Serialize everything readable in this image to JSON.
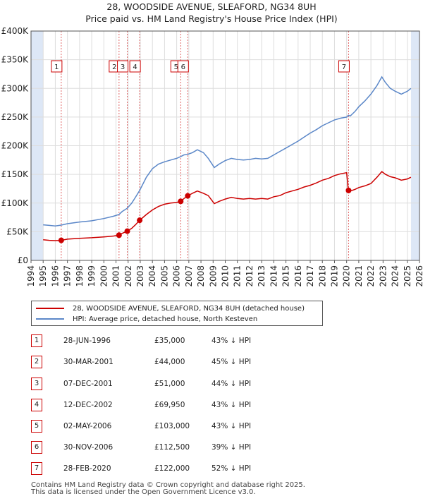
{
  "title_line1": "28, WOODSIDE AVENUE, SLEAFORD, NG34 8UH",
  "title_line2": "Price paid vs. HM Land Registry's House Price Index (HPI)",
  "colors": {
    "red": "#cc0000",
    "blue": "#5b87c8",
    "shade": "#dde7f6"
  },
  "chart_data": {
    "type": "line",
    "xlim": [
      1994,
      2026
    ],
    "ylim": [
      0,
      400000
    ],
    "y_ticks": [
      0,
      50000,
      100000,
      150000,
      200000,
      250000,
      300000,
      350000,
      400000
    ],
    "y_tick_labels": [
      "£0",
      "£50K",
      "£100K",
      "£150K",
      "£200K",
      "£250K",
      "£300K",
      "£350K",
      "£400K"
    ],
    "x_ticks": [
      1994,
      1995,
      1996,
      1997,
      1998,
      1999,
      2000,
      2001,
      2002,
      2003,
      2004,
      2005,
      2006,
      2007,
      2008,
      2009,
      2010,
      2011,
      2012,
      2013,
      2014,
      2015,
      2016,
      2017,
      2018,
      2019,
      2020,
      2021,
      2022,
      2023,
      2024,
      2025,
      2026
    ],
    "data_range": [
      1995.0,
      2025.3
    ],
    "series": [
      {
        "name": "28, WOODSIDE AVENUE, SLEAFORD, NG34 8UH (detached house)",
        "color": "#cc0000",
        "points": [
          [
            1995.0,
            36000
          ],
          [
            1995.5,
            35000
          ],
          [
            1996.0,
            34500
          ],
          [
            1996.49,
            35000
          ],
          [
            1997.0,
            37000
          ],
          [
            1998.0,
            38500
          ],
          [
            1999.0,
            39500
          ],
          [
            2000.0,
            41000
          ],
          [
            2000.8,
            42500
          ],
          [
            2001.25,
            44000
          ],
          [
            2001.5,
            47000
          ],
          [
            2001.93,
            51000
          ],
          [
            2002.3,
            56000
          ],
          [
            2002.6,
            62000
          ],
          [
            2002.95,
            69950
          ],
          [
            2003.5,
            80000
          ],
          [
            2004.0,
            88000
          ],
          [
            2004.5,
            94000
          ],
          [
            2005.0,
            98000
          ],
          [
            2005.5,
            100000
          ],
          [
            2006.0,
            101000
          ],
          [
            2006.33,
            103000
          ],
          [
            2006.6,
            108000
          ],
          [
            2006.91,
            112500
          ],
          [
            2007.3,
            117000
          ],
          [
            2007.7,
            121000
          ],
          [
            2008.2,
            117000
          ],
          [
            2008.6,
            113000
          ],
          [
            2009.1,
            99000
          ],
          [
            2009.5,
            103000
          ],
          [
            2010.0,
            107000
          ],
          [
            2010.5,
            110000
          ],
          [
            2011.0,
            108000
          ],
          [
            2011.5,
            107000
          ],
          [
            2012.0,
            108000
          ],
          [
            2012.5,
            107000
          ],
          [
            2013.0,
            108000
          ],
          [
            2013.5,
            107000
          ],
          [
            2014.0,
            111000
          ],
          [
            2014.5,
            113000
          ],
          [
            2015.0,
            118000
          ],
          [
            2015.5,
            121000
          ],
          [
            2016.0,
            124000
          ],
          [
            2016.5,
            128000
          ],
          [
            2017.0,
            131000
          ],
          [
            2017.5,
            135000
          ],
          [
            2018.0,
            140000
          ],
          [
            2018.5,
            143000
          ],
          [
            2019.0,
            148000
          ],
          [
            2019.5,
            151000
          ],
          [
            2020.0,
            153000
          ],
          [
            2020.14,
            122000
          ],
          [
            2020.3,
            121000
          ],
          [
            2020.7,
            124000
          ],
          [
            2021.0,
            127000
          ],
          [
            2021.5,
            130000
          ],
          [
            2022.0,
            134000
          ],
          [
            2022.5,
            145000
          ],
          [
            2022.9,
            155000
          ],
          [
            2023.2,
            150000
          ],
          [
            2023.6,
            146000
          ],
          [
            2024.0,
            144000
          ],
          [
            2024.5,
            140000
          ],
          [
            2025.0,
            142000
          ],
          [
            2025.3,
            145000
          ]
        ]
      },
      {
        "name": "HPI: Average price, detached house, North Kesteven",
        "color": "#5b87c8",
        "points": [
          [
            1995.0,
            62000
          ],
          [
            1995.5,
            61000
          ],
          [
            1996.0,
            60000
          ],
          [
            1996.49,
            61500
          ],
          [
            1997.0,
            64000
          ],
          [
            1998.0,
            67000
          ],
          [
            1999.0,
            69000
          ],
          [
            2000.0,
            73000
          ],
          [
            2000.8,
            77000
          ],
          [
            2001.25,
            80000
          ],
          [
            2001.5,
            85000
          ],
          [
            2001.93,
            91000
          ],
          [
            2002.3,
            100000
          ],
          [
            2002.6,
            110000
          ],
          [
            2002.95,
            122000
          ],
          [
            2003.5,
            145000
          ],
          [
            2004.0,
            160000
          ],
          [
            2004.5,
            168000
          ],
          [
            2005.0,
            172000
          ],
          [
            2005.5,
            175000
          ],
          [
            2006.0,
            178000
          ],
          [
            2006.33,
            181000
          ],
          [
            2006.6,
            184000
          ],
          [
            2006.91,
            185000
          ],
          [
            2007.3,
            188000
          ],
          [
            2007.7,
            193000
          ],
          [
            2008.2,
            188000
          ],
          [
            2008.6,
            178000
          ],
          [
            2009.1,
            162000
          ],
          [
            2009.5,
            168000
          ],
          [
            2010.0,
            174000
          ],
          [
            2010.5,
            178000
          ],
          [
            2011.0,
            176000
          ],
          [
            2011.5,
            175000
          ],
          [
            2012.0,
            176000
          ],
          [
            2012.5,
            178000
          ],
          [
            2013.0,
            177000
          ],
          [
            2013.5,
            178000
          ],
          [
            2014.0,
            184000
          ],
          [
            2014.5,
            190000
          ],
          [
            2015.0,
            196000
          ],
          [
            2015.5,
            202000
          ],
          [
            2016.0,
            208000
          ],
          [
            2016.5,
            215000
          ],
          [
            2017.0,
            222000
          ],
          [
            2017.5,
            228000
          ],
          [
            2018.0,
            235000
          ],
          [
            2018.5,
            240000
          ],
          [
            2019.0,
            245000
          ],
          [
            2019.5,
            248000
          ],
          [
            2020.0,
            250000
          ],
          [
            2020.14,
            253000
          ],
          [
            2020.3,
            252000
          ],
          [
            2020.7,
            260000
          ],
          [
            2021.0,
            268000
          ],
          [
            2021.5,
            278000
          ],
          [
            2022.0,
            290000
          ],
          [
            2022.5,
            305000
          ],
          [
            2022.9,
            320000
          ],
          [
            2023.2,
            310000
          ],
          [
            2023.6,
            300000
          ],
          [
            2024.0,
            295000
          ],
          [
            2024.5,
            290000
          ],
          [
            2025.0,
            295000
          ],
          [
            2025.3,
            300000
          ]
        ]
      }
    ],
    "sales": [
      {
        "label": "1",
        "x": 1996.49,
        "y": 35000
      },
      {
        "label": "2",
        "x": 2001.25,
        "y": 44000
      },
      {
        "label": "3",
        "x": 2001.93,
        "y": 51000
      },
      {
        "label": "4",
        "x": 2002.95,
        "y": 69950
      },
      {
        "label": "5",
        "x": 2006.33,
        "y": 103000
      },
      {
        "label": "6",
        "x": 2006.91,
        "y": 112500
      },
      {
        "label": "7",
        "x": 2020.16,
        "y": 122000
      }
    ]
  },
  "legend": {
    "red": "28, WOODSIDE AVENUE, SLEAFORD, NG34 8UH (detached house)",
    "blue": "HPI: Average price, detached house, North Kesteven"
  },
  "transactions": [
    {
      "num": "1",
      "date": "28-JUN-1996",
      "price": "£35,000",
      "hpi": "43% ↓ HPI"
    },
    {
      "num": "2",
      "date": "30-MAR-2001",
      "price": "£44,000",
      "hpi": "45% ↓ HPI"
    },
    {
      "num": "3",
      "date": "07-DEC-2001",
      "price": "£51,000",
      "hpi": "44% ↓ HPI"
    },
    {
      "num": "4",
      "date": "12-DEC-2002",
      "price": "£69,950",
      "hpi": "43% ↓ HPI"
    },
    {
      "num": "5",
      "date": "02-MAY-2006",
      "price": "£103,000",
      "hpi": "43% ↓ HPI"
    },
    {
      "num": "6",
      "date": "30-NOV-2006",
      "price": "£112,500",
      "hpi": "39% ↓ HPI"
    },
    {
      "num": "7",
      "date": "28-FEB-2020",
      "price": "£122,000",
      "hpi": "52% ↓ HPI"
    }
  ],
  "footer_line1": "Contains HM Land Registry data © Crown copyright and database right 2025.",
  "footer_line2": "This data is licensed under the Open Government Licence v3.0."
}
